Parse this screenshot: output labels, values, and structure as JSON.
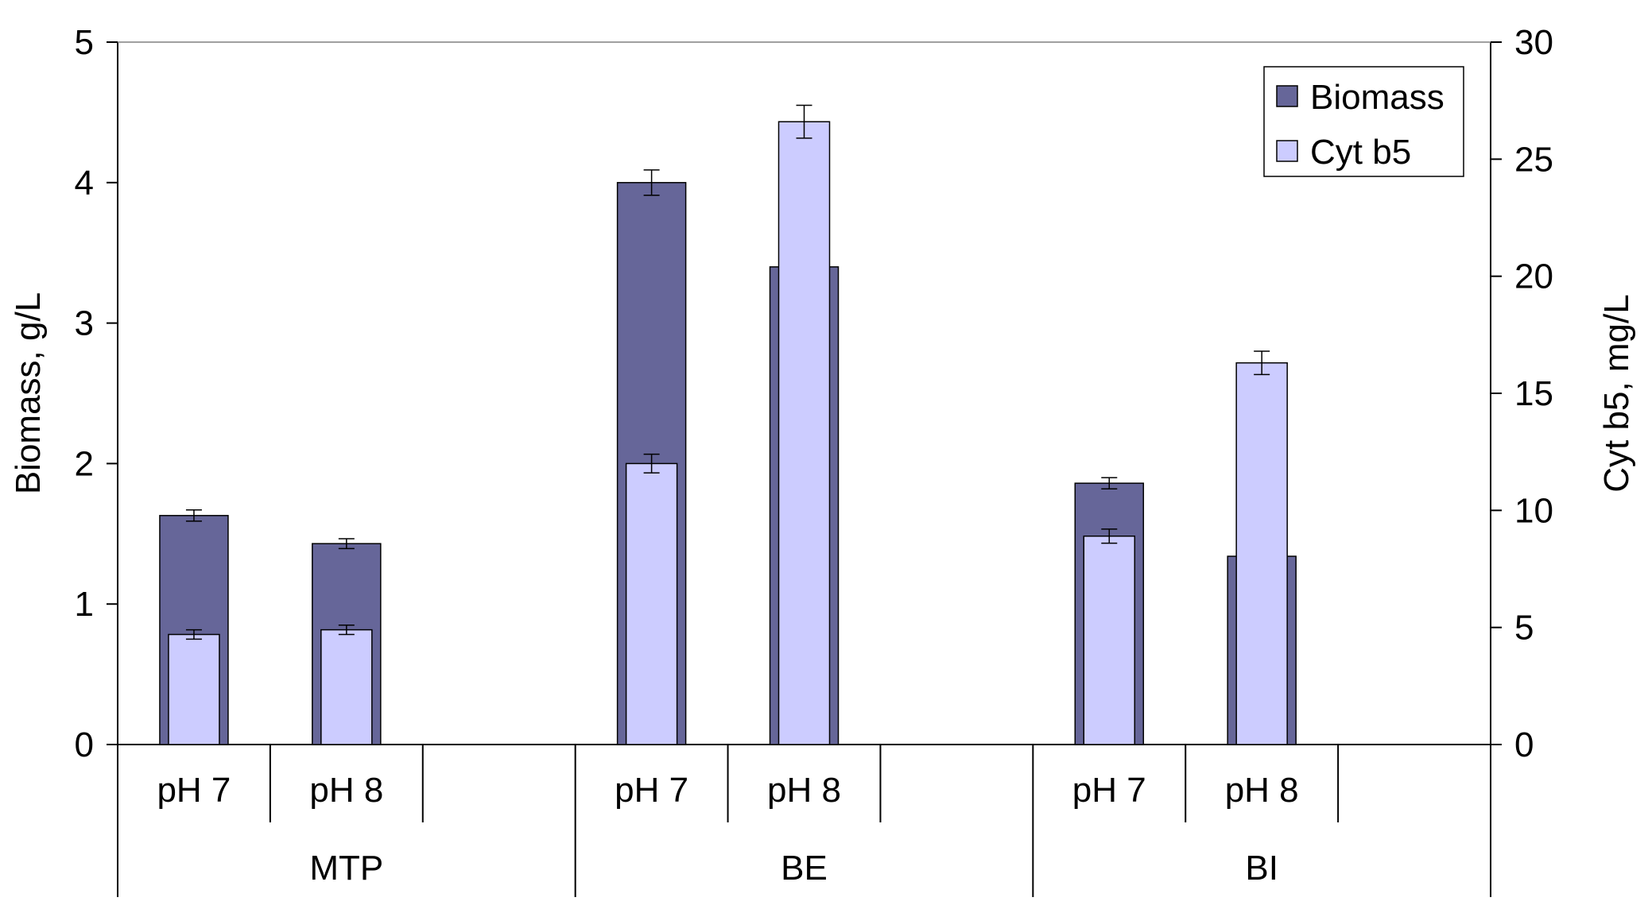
{
  "chart_data": {
    "type": "bar",
    "groups": [
      {
        "label": "MTP",
        "categories": [
          "pH 7",
          "pH 8"
        ]
      },
      {
        "label": "BE",
        "categories": [
          "pH 7",
          "pH 8"
        ]
      },
      {
        "label": "BI",
        "categories": [
          "pH 7",
          "pH 8"
        ]
      }
    ],
    "series": [
      {
        "name": "Biomass",
        "axis": "left",
        "color": "#666699",
        "values": [
          1.63,
          1.43,
          4.0,
          3.4,
          1.86,
          1.34
        ],
        "errors": [
          0.04,
          0.035,
          0.09,
          null,
          0.04,
          null
        ]
      },
      {
        "name": "Cyt b5",
        "axis": "right",
        "color": "#ccccff",
        "values": [
          4.7,
          4.9,
          12.0,
          26.6,
          8.9,
          16.3
        ],
        "errors": [
          0.2,
          0.2,
          0.4,
          0.7,
          0.3,
          0.5
        ]
      }
    ],
    "y_left": {
      "label": "Biomass, g/L",
      "min": 0,
      "max": 5,
      "ticks": [
        "0",
        "1",
        "2",
        "3",
        "4",
        "5"
      ]
    },
    "y_right": {
      "label": "Cyt b5, mg/L",
      "min": 0,
      "max": 30,
      "ticks": [
        "0",
        "5",
        "10",
        "15",
        "20",
        "25",
        "30"
      ]
    },
    "legend": {
      "position": "top-right",
      "entries": [
        "Biomass",
        "Cyt b5"
      ]
    },
    "grid": false
  }
}
